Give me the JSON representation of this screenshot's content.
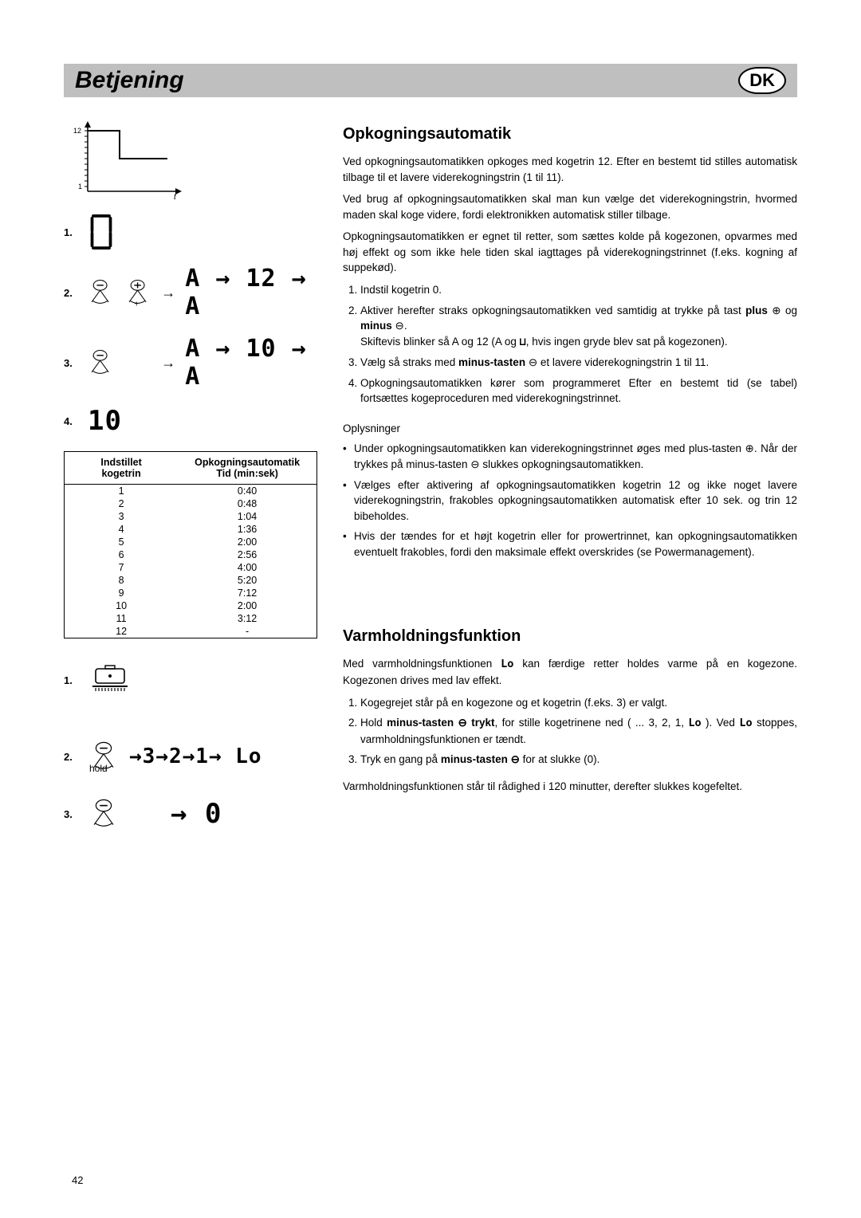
{
  "header": {
    "title": "Betjening",
    "badge": "DK"
  },
  "graph": {
    "y_top": "12",
    "y_bottom": "1",
    "x_label": "t"
  },
  "steps_a": {
    "s1": "1.",
    "s2": "2.",
    "s3": "3.",
    "s4": "4.",
    "disp1": "0",
    "disp2": "A → 12 → A",
    "disp3": "A → 10 → A",
    "disp4": "10"
  },
  "table": {
    "col1_a": "Indstillet",
    "col1_b": "kogetrin",
    "col2_a": "Opkogningsautomatik",
    "col2_b": "Tid (min:sek)",
    "rows": [
      [
        "1",
        "0:40"
      ],
      [
        "2",
        "0:48"
      ],
      [
        "3",
        "1:04"
      ],
      [
        "4",
        "1:36"
      ],
      [
        "5",
        "2:00"
      ],
      [
        "6",
        "2:56"
      ],
      [
        "7",
        "4:00"
      ],
      [
        "8",
        "5:20"
      ],
      [
        "9",
        "7:12"
      ],
      [
        "10",
        "2:00"
      ],
      [
        "11",
        "3:12"
      ],
      [
        "12",
        "-"
      ]
    ]
  },
  "section1": {
    "title": "Opkogningsautomatik",
    "p1": "Ved opkogningsautomatikken opkoges med kogetrin 12. Efter en bestemt tid stilles automatisk tilbage til et lavere viderekogningstrin (1 til 11).",
    "p2": "Ved brug af opkogningsautomatikken skal man kun vælge det viderekogningstrin, hvormed maden skal koge videre, fordi elektronikken automatisk stiller tilbage.",
    "p3": "Opkogningsautomatikken er egnet til retter, som sættes kolde på kogezonen, opvarmes med høj effekt og som ikke hele tiden skal iagttages på viderekogningstrinnet (f.eks. kogning af suppekød).",
    "li1": "Indstil kogetrin 0.",
    "li2a": "Aktiver herefter straks opkogningsautomatikken ved samtidig at trykke på tast ",
    "li2_plus": "plus",
    "li2_og": " og ",
    "li2_minus": "minus",
    "li2b": "Skiftevis blinker så A og 12 (A og ",
    "li2c": ", hvis ingen gryde blev sat på kogezonen).",
    "li3a": "Vælg så straks med ",
    "li3_bold": "minus-tasten",
    "li3b": " ⊖ et lavere viderekogningstrin 1 til 11.",
    "li4": "Opkogningsautomatikken kører som programmeret Efter en bestemt tid (se tabel) fortsættes kogeproceduren med viderekogningstrinnet.",
    "info_head": "Oplysninger",
    "b1": "Under opkogningsautomatikken kan viderekogningstrinnet øges med plus-tasten ⊕. Når der trykkes på minus-tasten ⊖ slukkes opkogningsautomatikken.",
    "b2": "Vælges efter aktivering af opkogningsautomatikken kogetrin 12 og ikke noget lavere viderekogningstrin, frakobles opkogningsautomatikken automatisk efter 10 sek. og trin 12 bibeholdes.",
    "b3": "Hvis der tændes for et højt kogetrin eller for prowertrinnet, kan opkogningsautomatikken eventuelt frakobles, fordi den maksimale effekt overskrides (se Powermanagement)."
  },
  "steps_b": {
    "s1": "1.",
    "s2": "2.",
    "s3": "3.",
    "hold": "hold",
    "disp2": "→3→2→1→ Lo",
    "disp3": "→ 0"
  },
  "section2": {
    "title": "Varmholdningsfunktion",
    "p1a": "Med varmholdningsfunktionen ",
    "p1b": " kan færdige retter holdes varme på en kogezone. Kogezonen drives med lav effekt.",
    "li1": "Kogegrejet står på en kogezone og et kogetrin (f.eks. 3) er valgt.",
    "li2a": "Hold ",
    "li2_bold": "minus-tasten ⊖ trykt",
    "li2b": ", for stille kogetrinene ned ( ... 3, 2, 1, ",
    "li2c": " ). Ved ",
    "li2d": " stoppes, varmholdningsfunktionen er tændt.",
    "li3a": "Tryk en gang på ",
    "li3_bold": "minus-tasten ⊖",
    "li3b": " for at slukke (0).",
    "p2": "Varmholdningsfunktionen står til rådighed i 120 minutter, derefter slukkes kogefeltet."
  },
  "page": "42",
  "style": {
    "header_bg": "#bfbfbf",
    "body_font_size": 13.5,
    "title_font_size": 30,
    "h2_font_size": 20
  }
}
